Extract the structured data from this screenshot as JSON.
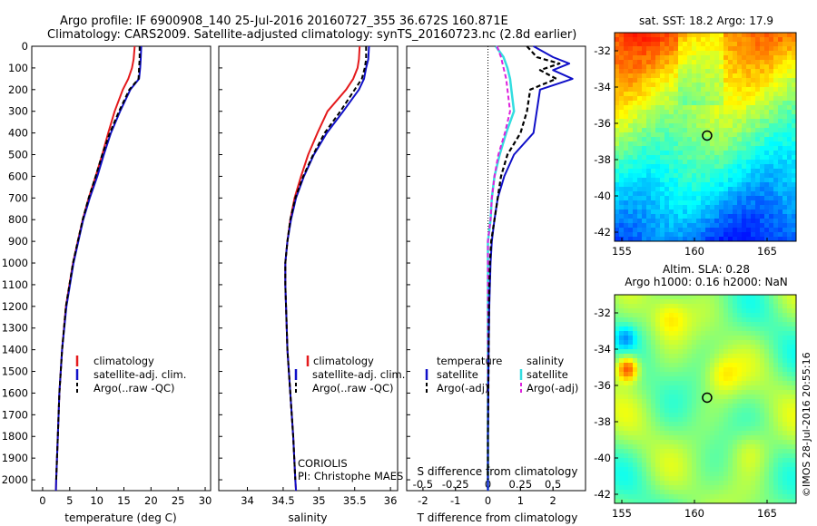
{
  "header": {
    "line1": "Argo profile: IF 6900908_140 25-Jul-2016 20160727_355 36.672S 160.871E",
    "line2": "Climatology: CARS2009. Satellite-adjusted climatology: synTS_20160723.nc (2.8d earlier)"
  },
  "colors": {
    "climatology": "#e41a1c",
    "satellite": "#1010c8",
    "argo": "#000000",
    "sat_s": "#33dde0",
    "argo_s": "#dd22dd"
  },
  "chart_data": [
    {
      "type": "line",
      "xlabel": "temperature (deg C)",
      "xlim": [
        -2,
        31
      ],
      "xticks": [
        0,
        5,
        10,
        15,
        20,
        25,
        30
      ],
      "ylim": [
        2050,
        0
      ],
      "yticks": [
        0,
        100,
        200,
        300,
        400,
        500,
        600,
        700,
        800,
        900,
        1000,
        1100,
        1200,
        1300,
        1400,
        1500,
        1600,
        1700,
        1800,
        1900,
        2000
      ],
      "legend": [
        "climatology",
        "satellite-adj. clim.",
        "Argo(..raw -QC)"
      ],
      "series": [
        {
          "name": "climatology",
          "depth": [
            0,
            60,
            100,
            150,
            200,
            300,
            400,
            500,
            600,
            700,
            800,
            900,
            1000,
            1200,
            1400,
            1600,
            1800,
            2000,
            2050
          ],
          "values": [
            17.0,
            16.8,
            16.5,
            15.8,
            14.8,
            13.3,
            12.1,
            11.0,
            9.8,
            8.5,
            7.4,
            6.5,
            5.6,
            4.3,
            3.6,
            3.1,
            2.8,
            2.5,
            2.45
          ]
        },
        {
          "name": "satellite-adj. clim.",
          "depth": [
            0,
            60,
            100,
            150,
            200,
            300,
            400,
            500,
            600,
            700,
            800,
            900,
            1000,
            1200,
            1400,
            1600,
            1800,
            2000,
            2050
          ],
          "values": [
            18.2,
            18.1,
            18.0,
            17.8,
            16.2,
            14.3,
            12.6,
            11.3,
            10.1,
            8.7,
            7.5,
            6.6,
            5.7,
            4.4,
            3.6,
            3.1,
            2.8,
            2.5,
            2.45
          ]
        },
        {
          "name": "Argo(..raw -QC)",
          "depth": [
            0,
            60,
            100,
            150,
            200,
            300,
            400,
            500,
            600,
            700,
            800,
            900,
            1000,
            1200,
            1400,
            1600,
            1800,
            2000
          ],
          "values": [
            17.9,
            17.9,
            17.8,
            17.7,
            16.0,
            14.1,
            12.4,
            11.0,
            9.8,
            8.5,
            7.4,
            6.5,
            5.6,
            4.3,
            3.6,
            3.1,
            2.8,
            2.5
          ]
        }
      ]
    },
    {
      "type": "line",
      "xlabel": "salinity",
      "xlim": [
        33.6,
        36.1
      ],
      "xticks": [
        34,
        34.5,
        35,
        35.5,
        36
      ],
      "ylim": [
        2050,
        0
      ],
      "legend": [
        "climatology",
        "satellite-adj. clim.",
        "Argo(..raw -QC)"
      ],
      "annotation": [
        "CORIOLIS",
        "PI: Christophe MAES"
      ],
      "series": [
        {
          "name": "climatology",
          "depth": [
            0,
            60,
            100,
            150,
            200,
            300,
            400,
            500,
            600,
            700,
            800,
            900,
            1000,
            1100,
            1200,
            1400,
            1600,
            1800,
            2000,
            2050
          ],
          "values": [
            35.57,
            35.56,
            35.54,
            35.48,
            35.38,
            35.12,
            34.98,
            34.85,
            34.75,
            34.66,
            34.6,
            34.56,
            34.53,
            34.53,
            34.54,
            34.56,
            34.6,
            34.64,
            34.67,
            34.68
          ]
        },
        {
          "name": "satellite-adj. clim.",
          "depth": [
            0,
            60,
            100,
            150,
            200,
            300,
            400,
            500,
            600,
            700,
            800,
            900,
            1000,
            1100,
            1200,
            1400,
            1600,
            1800,
            2000,
            2050
          ],
          "values": [
            35.7,
            35.69,
            35.66,
            35.63,
            35.56,
            35.34,
            35.11,
            34.93,
            34.79,
            34.68,
            34.61,
            34.56,
            34.53,
            34.53,
            34.54,
            34.56,
            34.6,
            34.64,
            34.67,
            34.68
          ]
        },
        {
          "name": "Argo(..raw -QC)",
          "depth": [
            0,
            60,
            100,
            150,
            200,
            300,
            400,
            500,
            600,
            700,
            800,
            900,
            1000,
            1100,
            1200,
            1400,
            1600,
            1800,
            2000
          ],
          "values": [
            35.66,
            35.66,
            35.64,
            35.6,
            35.5,
            35.3,
            35.08,
            34.92,
            34.78,
            34.67,
            34.6,
            34.56,
            34.53,
            34.53,
            34.54,
            34.56,
            34.6,
            34.64,
            34.67
          ]
        }
      ]
    },
    {
      "type": "line",
      "xlabel": "T difference from climatology",
      "xlabel_top": "S difference from climatology",
      "xlim": [
        -2.5,
        3
      ],
      "xticks": [
        -2,
        -1,
        0,
        1,
        2
      ],
      "xticks_s": [
        -0.5,
        -0.25,
        0,
        0.25,
        0.5
      ],
      "ylim": [
        2050,
        0
      ],
      "legend_title_t": "temperature",
      "legend_title_s": "salinity",
      "legend": [
        "satellite",
        "Argo(-adj)",
        "satellite",
        "Argo(-adj)"
      ],
      "series": [
        {
          "name": "satellite",
          "group": "temperature",
          "depth": [
            0,
            50,
            80,
            110,
            150,
            200,
            300,
            400,
            500,
            600,
            700,
            800,
            900,
            1000,
            1200,
            1400,
            1600,
            1800,
            2000,
            2050
          ],
          "values": [
            1.4,
            2.0,
            2.5,
            2.0,
            2.6,
            1.6,
            1.5,
            1.4,
            0.8,
            0.5,
            0.3,
            0.2,
            0.12,
            0.08,
            0.04,
            0.02,
            0.01,
            0.0,
            0.0,
            0.0
          ]
        },
        {
          "name": "Argo(-adj)",
          "group": "temperature",
          "depth": [
            0,
            50,
            80,
            110,
            150,
            200,
            300,
            400,
            500,
            600,
            700,
            800,
            900,
            1000,
            1200,
            1400,
            1600,
            1800,
            2000
          ],
          "values": [
            1.2,
            1.5,
            2.2,
            1.6,
            2.1,
            1.3,
            1.2,
            1.0,
            0.6,
            0.4,
            0.3,
            0.2,
            0.1,
            0.06,
            0.03,
            0.02,
            0.01,
            0.0,
            0.0
          ]
        },
        {
          "name": "satellite",
          "group": "salinity",
          "depth": [
            0,
            50,
            100,
            150,
            200,
            300,
            400,
            500,
            600,
            700,
            800,
            900,
            1000,
            1200,
            1400,
            1600,
            1800,
            2000,
            2050
          ],
          "values": [
            0.06,
            0.12,
            0.15,
            0.17,
            0.18,
            0.2,
            0.14,
            0.09,
            0.05,
            0.03,
            0.02,
            0.0,
            0.0,
            0.0,
            0.0,
            0.0,
            0.0,
            0.0,
            0.0
          ]
        },
        {
          "name": "Argo(-adj)",
          "group": "salinity",
          "depth": [
            0,
            50,
            100,
            150,
            200,
            300,
            400,
            500,
            600,
            700,
            800,
            900,
            1000,
            1200,
            1400,
            1600,
            1800,
            2000
          ],
          "values": [
            0.07,
            0.1,
            0.12,
            0.14,
            0.15,
            0.17,
            0.13,
            0.08,
            0.05,
            0.03,
            0.02,
            0.0,
            0.0,
            0.0,
            0.0,
            0.0,
            0.0,
            0.0
          ]
        }
      ]
    },
    {
      "type": "heatmap",
      "title": "sat. SST: 18.2 Argo: 17.9",
      "xlim": [
        154.5,
        167
      ],
      "ylim": [
        -42.5,
        -31
      ],
      "xticks": [
        155,
        160,
        165
      ],
      "yticks": [
        -32,
        -34,
        -36,
        -38,
        -40,
        -42
      ],
      "marker": {
        "lon": 160.871,
        "lat": -36.672
      }
    },
    {
      "type": "heatmap",
      "title_line1": "Altim. SLA: 0.28",
      "title_line2": "Argo h1000: 0.16 h2000: NaN",
      "xlim": [
        154.5,
        167
      ],
      "ylim": [
        -42.5,
        -31
      ],
      "xticks": [
        155,
        160,
        165
      ],
      "yticks": [
        -32,
        -34,
        -36,
        -38,
        -40,
        -42
      ],
      "marker": {
        "lon": 160.871,
        "lat": -36.672
      },
      "side_label": "©IMOS 28-Jul-2016 20:55:16"
    }
  ]
}
